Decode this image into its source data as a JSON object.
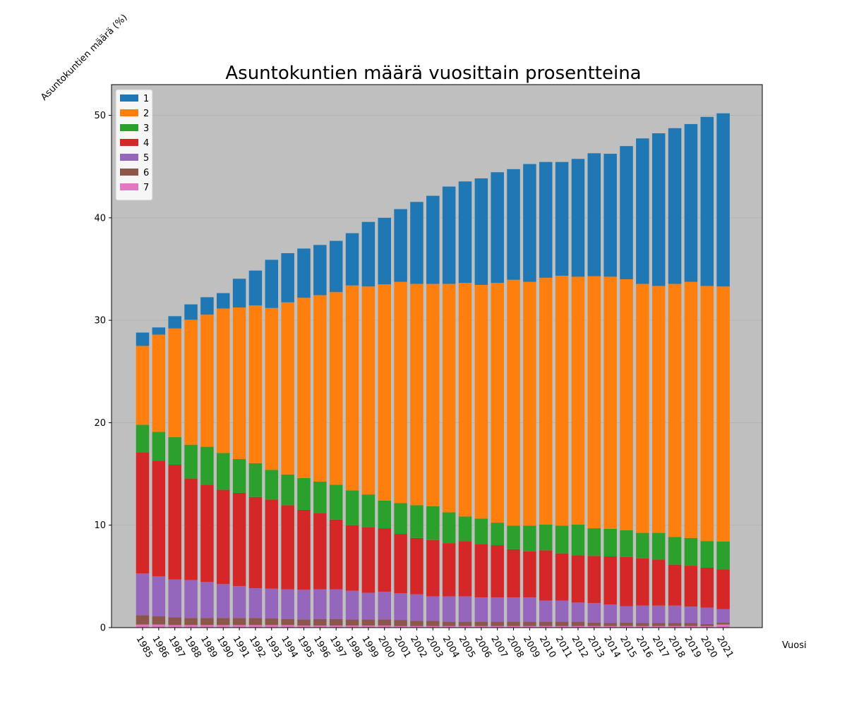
{
  "chart_data": {
    "type": "bar",
    "stacked": true,
    "title": "Asuntokuntien määrä vuosittain prosentteina",
    "xlabel": "Vuosi",
    "ylabel": "Asuntokuntien määrä (%)",
    "ylim": [
      0,
      53
    ],
    "yticks": [
      0,
      10,
      20,
      30,
      40,
      50
    ],
    "grid": "horizontal",
    "legend_position": "top-left",
    "background": "#bfbfbf",
    "categories": [
      "1985",
      "1986",
      "1987",
      "1988",
      "1989",
      "1990",
      "1991",
      "1992",
      "1993",
      "1994",
      "1995",
      "1996",
      "1997",
      "1998",
      "1999",
      "2000",
      "2001",
      "2002",
      "2003",
      "2004",
      "2005",
      "2006",
      "2007",
      "2008",
      "2009",
      "2010",
      "2011",
      "2012",
      "2013",
      "2014",
      "2015",
      "2016",
      "2017",
      "2018",
      "2019",
      "2020",
      "2021"
    ],
    "series": [
      {
        "name": "7",
        "color": "#e377c2",
        "values": [
          0.3,
          0.3,
          0.25,
          0.25,
          0.25,
          0.25,
          0.25,
          0.25,
          0.25,
          0.25,
          0.2,
          0.2,
          0.2,
          0.2,
          0.2,
          0.2,
          0.15,
          0.15,
          0.15,
          0.15,
          0.15,
          0.15,
          0.15,
          0.15,
          0.15,
          0.15,
          0.15,
          0.15,
          0.15,
          0.15,
          0.15,
          0.15,
          0.15,
          0.15,
          0.15,
          0.15,
          0.3
        ]
      },
      {
        "name": "6",
        "color": "#8c564b",
        "values": [
          0.9,
          0.8,
          0.75,
          0.7,
          0.7,
          0.7,
          0.7,
          0.7,
          0.65,
          0.6,
          0.6,
          0.65,
          0.65,
          0.6,
          0.6,
          0.6,
          0.6,
          0.5,
          0.5,
          0.4,
          0.4,
          0.4,
          0.4,
          0.4,
          0.4,
          0.4,
          0.4,
          0.4,
          0.35,
          0.3,
          0.35,
          0.3,
          0.3,
          0.3,
          0.3,
          0.2,
          0.2
        ]
      },
      {
        "name": "5",
        "color": "#9467bd",
        "values": [
          4.1,
          3.9,
          3.7,
          3.7,
          3.5,
          3.3,
          3.1,
          2.9,
          2.9,
          2.9,
          2.9,
          2.9,
          2.9,
          2.8,
          2.6,
          2.7,
          2.6,
          2.6,
          2.4,
          2.5,
          2.5,
          2.4,
          2.4,
          2.4,
          2.4,
          2.1,
          2.1,
          1.9,
          1.9,
          1.8,
          1.6,
          1.7,
          1.7,
          1.7,
          1.6,
          1.6,
          1.3
        ]
      },
      {
        "name": "4",
        "color": "#d62728",
        "values": [
          11.8,
          11.3,
          11.2,
          9.9,
          9.5,
          9.2,
          9.1,
          8.9,
          8.7,
          8.2,
          7.8,
          7.4,
          6.8,
          6.4,
          6.4,
          6.2,
          5.8,
          5.5,
          5.5,
          5.2,
          5.4,
          5.2,
          5.1,
          4.7,
          4.5,
          4.9,
          4.6,
          4.6,
          4.6,
          4.7,
          4.8,
          4.6,
          4.5,
          4.0,
          4.0,
          3.9,
          3.9
        ]
      },
      {
        "name": "3",
        "color": "#2ca02c",
        "values": [
          2.7,
          2.8,
          2.7,
          3.3,
          3.7,
          3.6,
          3.3,
          3.3,
          2.9,
          3.0,
          3.1,
          3.1,
          3.4,
          3.4,
          3.2,
          2.7,
          3.0,
          3.2,
          3.3,
          3.0,
          2.4,
          2.5,
          2.2,
          2.3,
          2.5,
          2.5,
          2.7,
          3.0,
          2.7,
          2.7,
          2.6,
          2.5,
          2.6,
          2.7,
          2.7,
          2.6,
          2.7
        ]
      },
      {
        "name": "2",
        "color": "#ff7f0e",
        "values": [
          7.7,
          9.5,
          10.6,
          12.2,
          12.9,
          14.1,
          14.8,
          15.4,
          15.8,
          16.8,
          17.6,
          18.2,
          18.8,
          20.0,
          20.3,
          21.1,
          21.6,
          21.6,
          21.7,
          22.3,
          22.8,
          22.8,
          23.4,
          24.0,
          23.8,
          24.1,
          24.4,
          24.2,
          24.6,
          24.6,
          24.5,
          24.3,
          24.1,
          24.7,
          25.0,
          24.9,
          24.9
        ]
      },
      {
        "name": "1",
        "color": "#1f77b4",
        "values": [
          1.3,
          0.7,
          1.2,
          1.5,
          1.7,
          1.5,
          2.8,
          3.4,
          4.7,
          4.8,
          4.8,
          4.9,
          5.0,
          5.1,
          6.3,
          6.5,
          7.1,
          8.0,
          8.6,
          9.5,
          9.9,
          10.4,
          10.8,
          10.8,
          11.5,
          11.3,
          11.1,
          11.5,
          12.0,
          12.0,
          13.0,
          14.2,
          14.9,
          15.2,
          15.4,
          16.5,
          16.9
        ]
      }
    ],
    "legend_order": [
      "1",
      "2",
      "3",
      "4",
      "5",
      "6",
      "7"
    ]
  }
}
